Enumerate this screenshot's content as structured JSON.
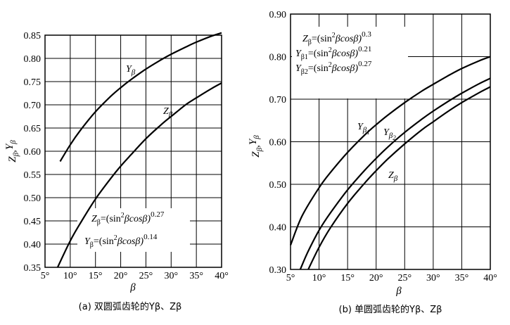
{
  "chart_data": [
    {
      "type": "line",
      "xlabel": "β",
      "ylabel": "Zβ,Yβ",
      "xlim": [
        5,
        40
      ],
      "ylim": [
        0.35,
        0.85
      ],
      "xticks": [
        "5°",
        "10°",
        "15°",
        "20°",
        "25°",
        "30°",
        "35°",
        "40°"
      ],
      "yticks": [
        "0.35",
        "0.40",
        "0.45",
        "0.50",
        "0.55",
        "0.60",
        "0.65",
        "0.70",
        "0.75",
        "0.80",
        "0.85"
      ],
      "grid": true,
      "series": [
        {
          "name": "Yβ",
          "x": [
            8,
            10,
            12,
            15,
            18,
            20,
            22,
            25,
            28,
            30,
            33,
            35,
            38,
            40
          ],
          "y": [
            0.578,
            0.614,
            0.645,
            0.685,
            0.718,
            0.737,
            0.754,
            0.777,
            0.797,
            0.809,
            0.825,
            0.835,
            0.848,
            0.855
          ]
        },
        {
          "name": "Zβ",
          "x": [
            7.5,
            10,
            12,
            15,
            18,
            20,
            22,
            25,
            28,
            30,
            33,
            35,
            38,
            40
          ],
          "y": [
            0.35,
            0.407,
            0.445,
            0.497,
            0.541,
            0.568,
            0.592,
            0.627,
            0.657,
            0.675,
            0.701,
            0.715,
            0.735,
            0.747
          ]
        }
      ],
      "annotations": [
        {
          "lhs": "Zβ=(sin",
          "sup": "2",
          "rhs": "βcosβ)",
          "exp": "0.27"
        },
        {
          "lhs": "Yβ=(sin",
          "sup": "2",
          "rhs": "βcosβ)",
          "exp": "0.14"
        }
      ],
      "caption": "(a)  双圆弧齿轮的Yβ、Zβ"
    },
    {
      "type": "line",
      "xlabel": "β",
      "ylabel": "Zβ,Yβ",
      "xlim": [
        5,
        40
      ],
      "ylim": [
        0.3,
        0.9
      ],
      "xticks": [
        "5°",
        "10°",
        "15°",
        "20°",
        "25°",
        "30°",
        "35°",
        "40°"
      ],
      "yticks": [
        "0.30",
        "0.40",
        "0.50",
        "0.60",
        "0.70",
        "0.80",
        "0.90"
      ],
      "grid": true,
      "series": [
        {
          "name": "Yβ1",
          "x": [
            5,
            7,
            10,
            12,
            15,
            18,
            20,
            22,
            25,
            28,
            30,
            33,
            35,
            38,
            40
          ],
          "y": [
            0.357,
            0.425,
            0.492,
            0.528,
            0.575,
            0.616,
            0.64,
            0.662,
            0.692,
            0.719,
            0.735,
            0.758,
            0.772,
            0.79,
            0.8
          ]
        },
        {
          "name": "Yβ2",
          "x": [
            6.7,
            8,
            10,
            12,
            15,
            18,
            20,
            22,
            25,
            28,
            30,
            33,
            35,
            38,
            40
          ],
          "y": [
            0.3,
            0.34,
            0.392,
            0.433,
            0.487,
            0.533,
            0.561,
            0.587,
            0.622,
            0.653,
            0.672,
            0.698,
            0.714,
            0.736,
            0.749
          ]
        },
        {
          "name": "Zβ",
          "x": [
            8.1,
            10,
            12,
            15,
            18,
            20,
            22,
            25,
            28,
            30,
            33,
            35,
            38,
            40
          ],
          "y": [
            0.3,
            0.352,
            0.398,
            0.455,
            0.503,
            0.532,
            0.559,
            0.595,
            0.628,
            0.647,
            0.675,
            0.692,
            0.715,
            0.729
          ]
        }
      ],
      "annotations": [
        {
          "lhs": "Zβ=(sin",
          "sup": "2",
          "rhs": "βcosβ)",
          "exp": "0.3"
        },
        {
          "lhs": "Yβ1=(sin",
          "sup": "2",
          "rhs": "βcosβ)",
          "exp": "0.21"
        },
        {
          "lhs": "Yβ2=(sin",
          "sup": "2",
          "rhs": "βcosβ)",
          "exp": "0.27"
        }
      ],
      "caption": "(b)  单圆弧齿轮的Yβ、Zβ"
    }
  ]
}
